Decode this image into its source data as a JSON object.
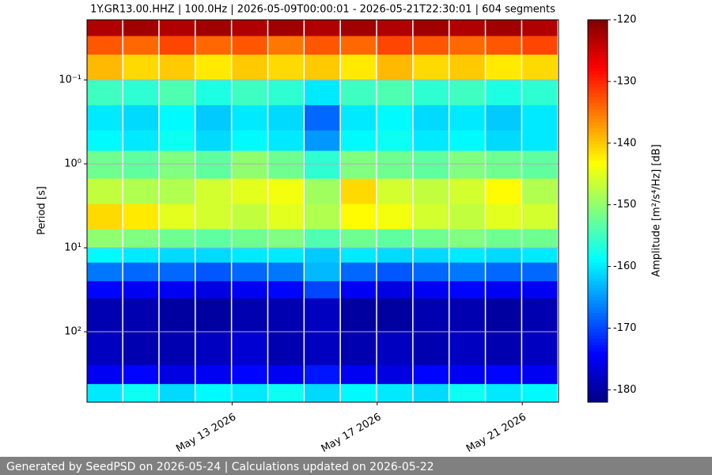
{
  "chart_data": {
    "type": "heatmap",
    "title": "1Y.GR13.00.HHZ | 100.0Hz | 2026-05-09T00:00:01 - 2026-05-21T22:30:01 | 604 segments",
    "ylabel": "Period [s]",
    "colorbar_label": "Amplitude [m²/s⁴/Hz] [dB]",
    "colormap": "jet",
    "yscale": "log",
    "grid": true,
    "x": [
      "2026-05-09",
      "2026-05-10",
      "2026-05-11",
      "2026-05-12",
      "2026-05-13",
      "2026-05-14",
      "2026-05-15",
      "2026-05-16",
      "2026-05-17",
      "2026-05-18",
      "2026-05-19",
      "2026-05-20",
      "2026-05-21"
    ],
    "y_edges": [
      0.0192,
      0.03,
      0.05,
      0.1,
      0.2,
      0.4,
      0.7,
      1.5,
      3,
      6,
      10,
      15,
      25,
      40,
      100,
      250,
      420,
      690
    ],
    "values": [
      [
        -123,
        -122,
        -123,
        -122,
        -123,
        -122,
        -123,
        -122,
        -123,
        -122,
        -123,
        -122,
        -123
      ],
      [
        -133,
        -134,
        -132,
        -134,
        -133,
        -135,
        -133,
        -134,
        -132,
        -133,
        -134,
        -133,
        -132
      ],
      [
        -139,
        -141,
        -140,
        -142,
        -140,
        -141,
        -140,
        -142,
        -139,
        -141,
        -140,
        -142,
        -141
      ],
      [
        -155,
        -156,
        -154,
        -157,
        -155,
        -156,
        -160,
        -155,
        -154,
        -156,
        -155,
        -157,
        -156
      ],
      [
        -160,
        -161,
        -159,
        -162,
        -160,
        -161,
        -168,
        -160,
        -159,
        -161,
        -160,
        -162,
        -160
      ],
      [
        -159,
        -160,
        -158,
        -161,
        -159,
        -160,
        -165,
        -159,
        -158,
        -160,
        -159,
        -161,
        -160
      ],
      [
        -152,
        -153,
        -151,
        -153,
        -150,
        -152,
        -156,
        -151,
        -152,
        -153,
        -151,
        -152,
        -153
      ],
      [
        -147,
        -148,
        -148,
        -146,
        -145,
        -144,
        -149,
        -141,
        -146,
        -147,
        -146,
        -143,
        -148
      ],
      [
        -141,
        -142,
        -145,
        -146,
        -147,
        -145,
        -148,
        -143,
        -144,
        -146,
        -147,
        -145,
        -146
      ],
      [
        -150,
        -151,
        -152,
        -153,
        -152,
        -151,
        -154,
        -152,
        -153,
        -152,
        -151,
        -152,
        -152
      ],
      [
        -159,
        -160,
        -161,
        -161,
        -160,
        -160,
        -162,
        -160,
        -161,
        -161,
        -160,
        -161,
        -160
      ],
      [
        -167,
        -168,
        -168,
        -169,
        -168,
        -167,
        -163,
        -168,
        -169,
        -168,
        -167,
        -168,
        -168
      ],
      [
        -174,
        -175,
        -175,
        -176,
        -175,
        -174,
        -170,
        -175,
        -176,
        -175,
        -174,
        -175,
        -175
      ],
      [
        -179,
        -179,
        -180,
        -180,
        -179,
        -179,
        -178,
        -180,
        -180,
        -179,
        -179,
        -180,
        -179
      ],
      [
        -178,
        -179,
        -179,
        -178,
        -177,
        -179,
        -178,
        -179,
        -178,
        -179,
        -178,
        -179,
        -178
      ],
      [
        -175,
        -174,
        -176,
        -175,
        -174,
        -175,
        -173,
        -175,
        -176,
        -174,
        -175,
        -174,
        -175
      ],
      [
        -160,
        -158,
        -161,
        -159,
        -160,
        -158,
        -161,
        -159,
        -160,
        -161,
        -158,
        -160,
        -159
      ]
    ],
    "xlim": [
      "2026-05-09",
      "2026-05-22"
    ],
    "xticks": [
      {
        "value": "2026-05-13",
        "label": "May 13 2026"
      },
      {
        "value": "2026-05-17",
        "label": "May 17 2026"
      },
      {
        "value": "2026-05-21",
        "label": "May 21 2026"
      }
    ],
    "ylim": [
      690,
      0.0192
    ],
    "yticks": [
      {
        "value": 0.1,
        "label": "10⁻¹"
      },
      {
        "value": 1,
        "label": "10⁰"
      },
      {
        "value": 10,
        "label": "10¹"
      },
      {
        "value": 100,
        "label": "10²"
      }
    ],
    "clim": [
      -182,
      -120
    ],
    "cticks": [
      -120,
      -130,
      -140,
      -150,
      -160,
      -170,
      -180
    ]
  },
  "footer": {
    "text": "Generated by SeedPSD on 2026-05-24 | Calculations updated on 2026-05-22"
  }
}
